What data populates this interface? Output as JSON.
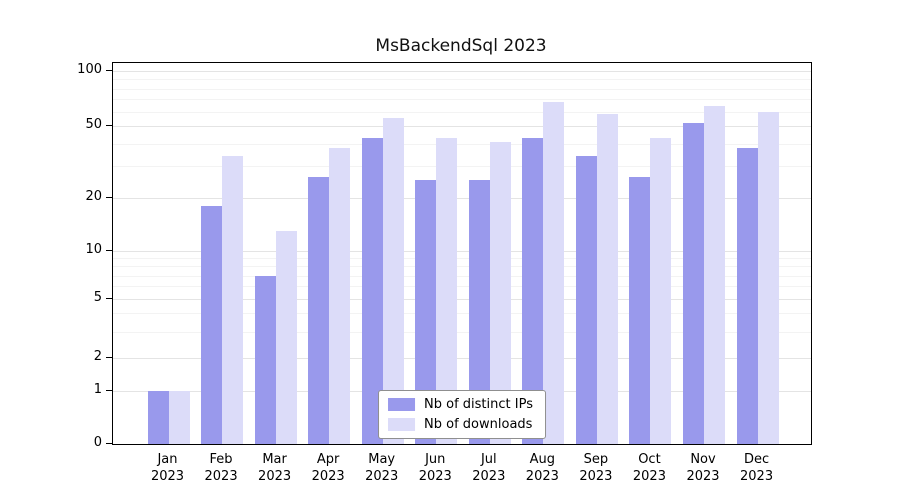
{
  "title": "MsBackendSql 2023",
  "chart_data": {
    "type": "bar",
    "title": "MsBackendSql 2023",
    "categories": [
      "Jan",
      "Feb",
      "Mar",
      "Apr",
      "May",
      "Jun",
      "Jul",
      "Aug",
      "Sep",
      "Oct",
      "Nov",
      "Dec"
    ],
    "year": "2023",
    "series": [
      {
        "name": "Nb of distinct IPs",
        "color": "#9999ec",
        "values": [
          1,
          18,
          7,
          26,
          43,
          25,
          25,
          43,
          34,
          26,
          52,
          38
        ]
      },
      {
        "name": "Nb of downloads",
        "color": "#dcdcf9",
        "values": [
          1,
          34,
          13,
          38,
          55,
          43,
          41,
          68,
          58,
          43,
          64,
          60
        ]
      }
    ],
    "yscale": "symlog",
    "yticks": [
      0,
      1,
      2,
      5,
      10,
      20,
      50,
      100
    ],
    "yminor": [
      3,
      4,
      6,
      7,
      8,
      9,
      30,
      40,
      60,
      70,
      80,
      90
    ],
    "ylim": [
      0,
      100
    ],
    "grid": true,
    "legend_position": "lower center inside"
  },
  "colors": {
    "grid_major": "#e4e4e4",
    "grid_minor": "#f3f3f3",
    "axis": "#000000",
    "background": "#ffffff"
  }
}
